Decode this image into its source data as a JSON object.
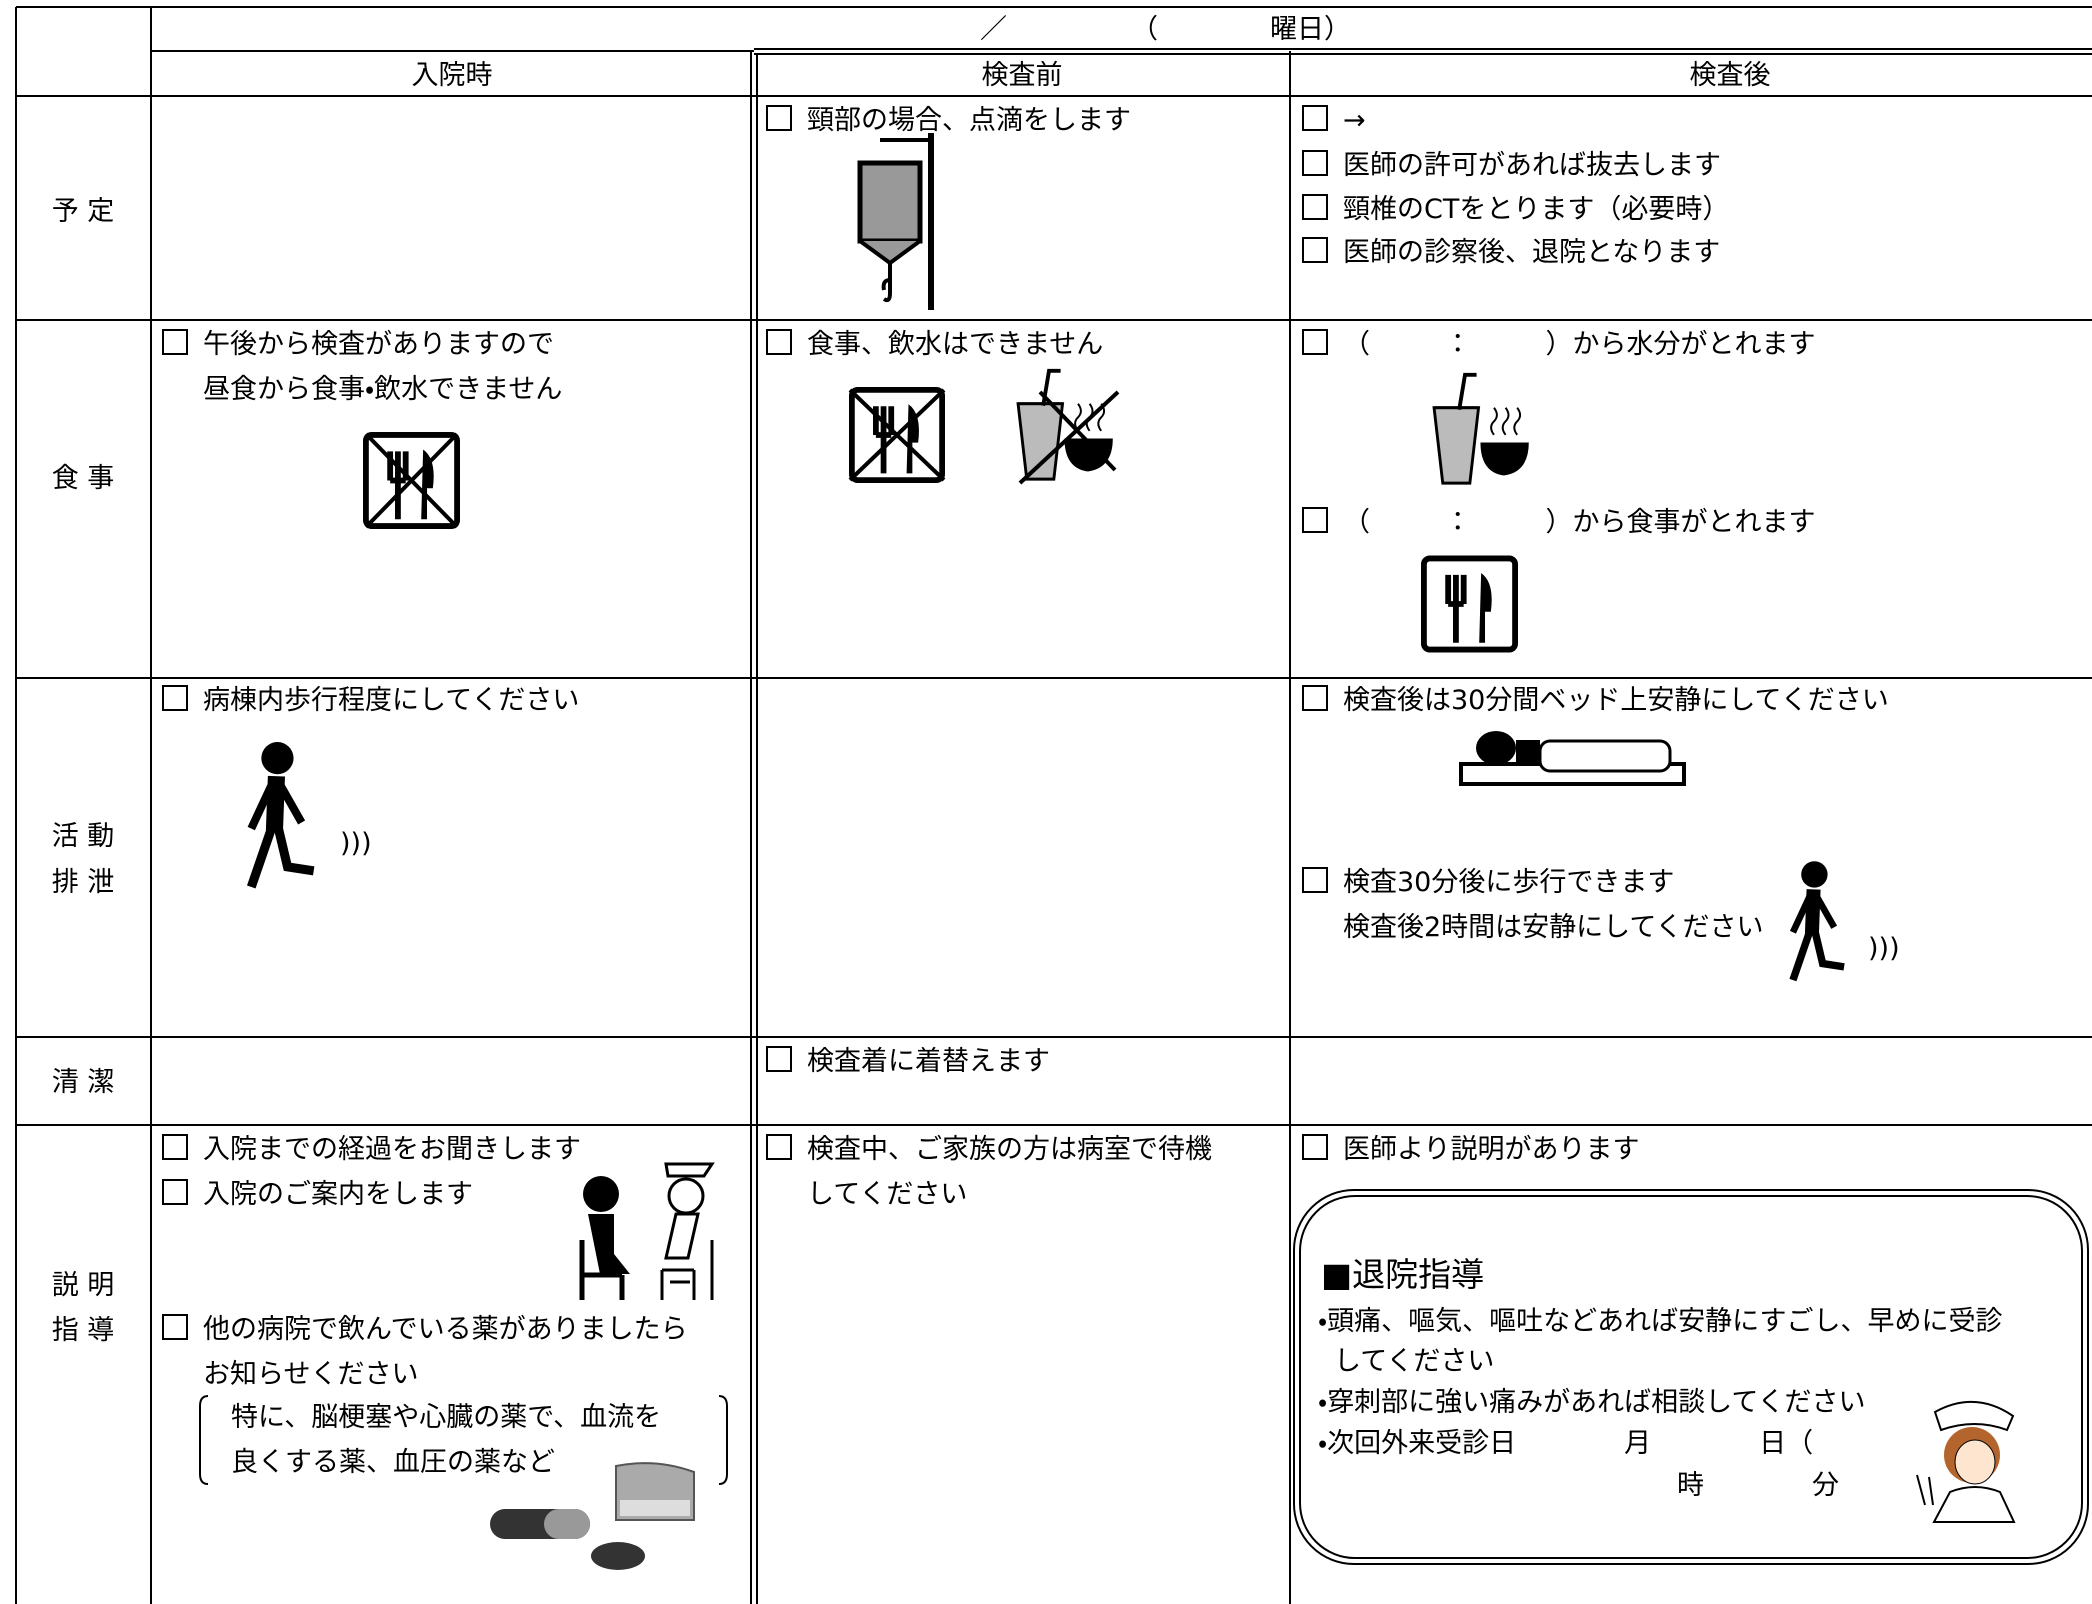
{
  "header": {
    "date_parts": [
      "／",
      "（",
      "曜日）"
    ],
    "columns": [
      "入院時",
      "検査前",
      "検査後"
    ]
  },
  "rows": [
    {
      "label": [
        "予 定"
      ],
      "cells": [
        [],
        [
          [
            "頸部の場合、点滴をします"
          ]
        ],
        [
          [
            "→"
          ],
          [
            "医師の許可があれば抜去します"
          ],
          [
            "頸椎のCTをとります（必要時）"
          ],
          [
            "医師の診察後、退院となります"
          ]
        ]
      ]
    },
    {
      "label": [
        "食 事"
      ],
      "cells": [
        [
          [
            "午後から検査がありますので",
            "昼食から食事・飲水できません"
          ]
        ],
        [
          [
            "食事、飲水はできません"
          ]
        ],
        [
          [
            "（　　　：　　　）から水分がとれます"
          ],
          [
            "（　　　：　　　）から食事がとれます"
          ]
        ]
      ]
    },
    {
      "label": [
        "活 動",
        "排 泄"
      ],
      "cells": [
        [
          [
            "病棟内歩行程度にしてください"
          ]
        ],
        [],
        [
          [
            "検査後は30分間ベッド上安静にしてください"
          ],
          [
            "検査30分後に歩行できます",
            "検査後2時間は安静にしてください"
          ]
        ]
      ]
    },
    {
      "label": [
        "清 潔"
      ],
      "cells": [
        [],
        [
          [
            "検査着に着替えます"
          ]
        ],
        []
      ]
    },
    {
      "label": [
        "説 明",
        "指 導"
      ],
      "cells": [
        [
          [
            "入院までの経過をお聞きします"
          ],
          [
            "入院のご案内をします"
          ],
          [
            "他の病院で飲んでいる薬がありましたら",
            "お知らせください"
          ]
        ],
        [
          [
            "検査中、ご家族の方は病室で待機",
            "してください"
          ]
        ],
        [
          [
            "医師より説明があります"
          ]
        ]
      ],
      "note": [
        "特に、脳梗塞や心臓の薬で、血流を",
        "良くする薬、血圧の薬など"
      ]
    }
  ],
  "discharge_guidance": {
    "title": "■退院指導",
    "lines": [
      "・頭痛、嘔気、嘔吐などあれば安静にすごし、早めに受診",
      "してください",
      "・穿刺部に強い痛みがあれば相談してください",
      "・次回外来受診日　　　　月　　　　日（",
      "時　　　　分"
    ]
  }
}
